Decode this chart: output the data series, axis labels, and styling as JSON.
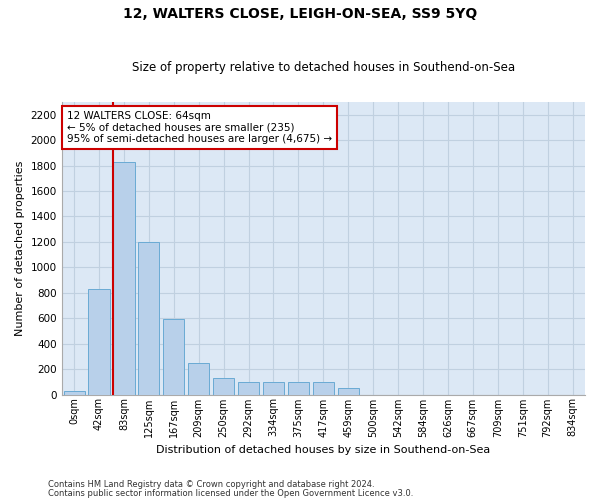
{
  "title": "12, WALTERS CLOSE, LEIGH-ON-SEA, SS9 5YQ",
  "subtitle": "Size of property relative to detached houses in Southend-on-Sea",
  "xlabel": "Distribution of detached houses by size in Southend-on-Sea",
  "ylabel": "Number of detached properties",
  "footnote1": "Contains HM Land Registry data © Crown copyright and database right 2024.",
  "footnote2": "Contains public sector information licensed under the Open Government Licence v3.0.",
  "bar_labels": [
    "0sqm",
    "42sqm",
    "83sqm",
    "125sqm",
    "167sqm",
    "209sqm",
    "250sqm",
    "292sqm",
    "334sqm",
    "375sqm",
    "417sqm",
    "459sqm",
    "500sqm",
    "542sqm",
    "584sqm",
    "626sqm",
    "667sqm",
    "709sqm",
    "751sqm",
    "792sqm",
    "834sqm"
  ],
  "bar_values": [
    30,
    830,
    1830,
    1200,
    590,
    250,
    130,
    100,
    100,
    100,
    100,
    50,
    0,
    0,
    0,
    0,
    0,
    0,
    0,
    0,
    0
  ],
  "bar_color": "#b8d0ea",
  "bar_edge_color": "#6aaad4",
  "grid_color": "#c0d0e0",
  "background_color": "#dce8f5",
  "annotation_text": "12 WALTERS CLOSE: 64sqm\n← 5% of detached houses are smaller (235)\n95% of semi-detached houses are larger (4,675) →",
  "annotation_box_color": "#ffffff",
  "annotation_border_color": "#cc0000",
  "ylim": [
    0,
    2300
  ],
  "yticks": [
    0,
    200,
    400,
    600,
    800,
    1000,
    1200,
    1400,
    1600,
    1800,
    2000,
    2200
  ]
}
